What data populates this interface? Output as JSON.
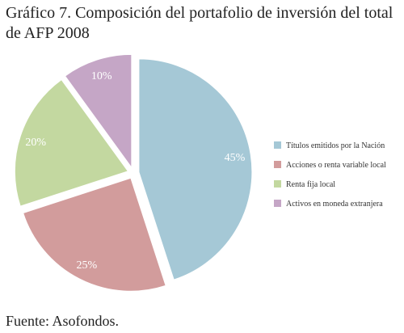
{
  "title": "Gráfico 7. Composición del portafolio de inversión del total de AFP  2008",
  "source": "Fuente: Asofondos.",
  "chart_data": {
    "type": "pie",
    "categories": [
      "Títulos emitidos por la Nación",
      "Acciones o renta variable local",
      "Renta fija local",
      "Activos en moneda extranjera"
    ],
    "values": [
      45,
      25,
      20,
      10
    ],
    "labels": [
      "45%",
      "25%",
      "20%",
      "10%"
    ],
    "colors": [
      "#a5c8d6",
      "#d29c9c",
      "#c3d8a0",
      "#c5a6c6"
    ],
    "legend_position": "right"
  }
}
